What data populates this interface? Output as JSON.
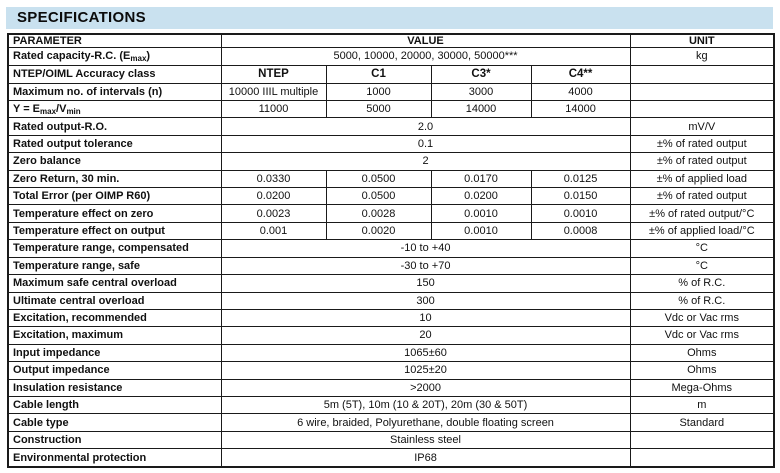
{
  "title": "SPECIFICATIONS",
  "colors": {
    "title_band_bg": "#c9e1ef",
    "table_border": "#1a1a1a",
    "text": "#111111",
    "page_bg": "#ffffff"
  },
  "table": {
    "headers": {
      "parameter": "PARAMETER",
      "value": "VALUE",
      "unit": "UNIT"
    },
    "rows": [
      {
        "parameter": "Rated capacity-R.C. (E_{max})",
        "values": [
          "5000, 10000, 20000, 30000, 50000***"
        ],
        "unit": "kg"
      },
      {
        "parameter": "NTEP/OIML Accuracy class",
        "values": [
          "NTEP",
          "C1",
          "C3*",
          "C4**"
        ],
        "unit": "",
        "bold_values": true
      },
      {
        "parameter": "Maximum no. of intervals (n)",
        "values": [
          "10000 IIIL multiple",
          "1000",
          "3000",
          "4000"
        ],
        "unit": ""
      },
      {
        "parameter": "Y = E_{max}/V_{min}",
        "values": [
          "11000",
          "5000",
          "14000",
          "14000"
        ],
        "unit": ""
      },
      {
        "parameter": "Rated output-R.O.",
        "values": [
          "2.0"
        ],
        "unit": "mV/V"
      },
      {
        "parameter": "Rated output tolerance",
        "values": [
          "0.1"
        ],
        "unit": "±% of rated output"
      },
      {
        "parameter": "Zero balance",
        "values": [
          "2"
        ],
        "unit": "±% of rated output"
      },
      {
        "parameter": "Zero Return, 30 min.",
        "values": [
          "0.0330",
          "0.0500",
          "0.0170",
          "0.0125"
        ],
        "unit": "±% of applied load"
      },
      {
        "parameter": "Total Error (per OIMP R60)",
        "values": [
          "0.0200",
          "0.0500",
          "0.0200",
          "0.0150"
        ],
        "unit": "±% of rated output"
      },
      {
        "parameter": "Temperature effect on zero",
        "values": [
          "0.0023",
          "0.0028",
          "0.0010",
          "0.0010"
        ],
        "unit": "±% of rated output/°C"
      },
      {
        "parameter": "Temperature effect on output",
        "values": [
          "0.001",
          "0.0020",
          "0.0010",
          "0.0008"
        ],
        "unit": "±% of applied load/°C"
      },
      {
        "parameter": "Temperature range, compensated",
        "values": [
          "-10 to +40"
        ],
        "unit": "°C"
      },
      {
        "parameter": "Temperature range, safe",
        "values": [
          "-30 to +70"
        ],
        "unit": "°C"
      },
      {
        "parameter": "Maximum safe central overload",
        "values": [
          "150"
        ],
        "unit": "% of R.C."
      },
      {
        "parameter": "Ultimate central overload",
        "values": [
          "300"
        ],
        "unit": "% of R.C."
      },
      {
        "parameter": "Excitation, recommended",
        "values": [
          "10"
        ],
        "unit": "Vdc or Vac rms"
      },
      {
        "parameter": "Excitation, maximum",
        "values": [
          "20"
        ],
        "unit": "Vdc or Vac rms"
      },
      {
        "parameter": "Input impedance",
        "values": [
          "1065±60"
        ],
        "unit": "Ohms"
      },
      {
        "parameter": "Output impedance",
        "values": [
          "1025±20"
        ],
        "unit": "Ohms"
      },
      {
        "parameter": "Insulation resistance",
        "values": [
          ">2000"
        ],
        "unit": "Mega-Ohms"
      },
      {
        "parameter": "Cable length",
        "values": [
          "5m (5T), 10m (10 & 20T), 20m (30 & 50T)"
        ],
        "unit": "m"
      },
      {
        "parameter": "Cable type",
        "values": [
          "6 wire, braided, Polyurethane, double floating screen"
        ],
        "unit": "Standard"
      },
      {
        "parameter": "Construction",
        "values": [
          "Stainless steel"
        ],
        "unit": ""
      },
      {
        "parameter": "Environmental protection",
        "values": [
          "IP68"
        ],
        "unit": ""
      }
    ]
  }
}
